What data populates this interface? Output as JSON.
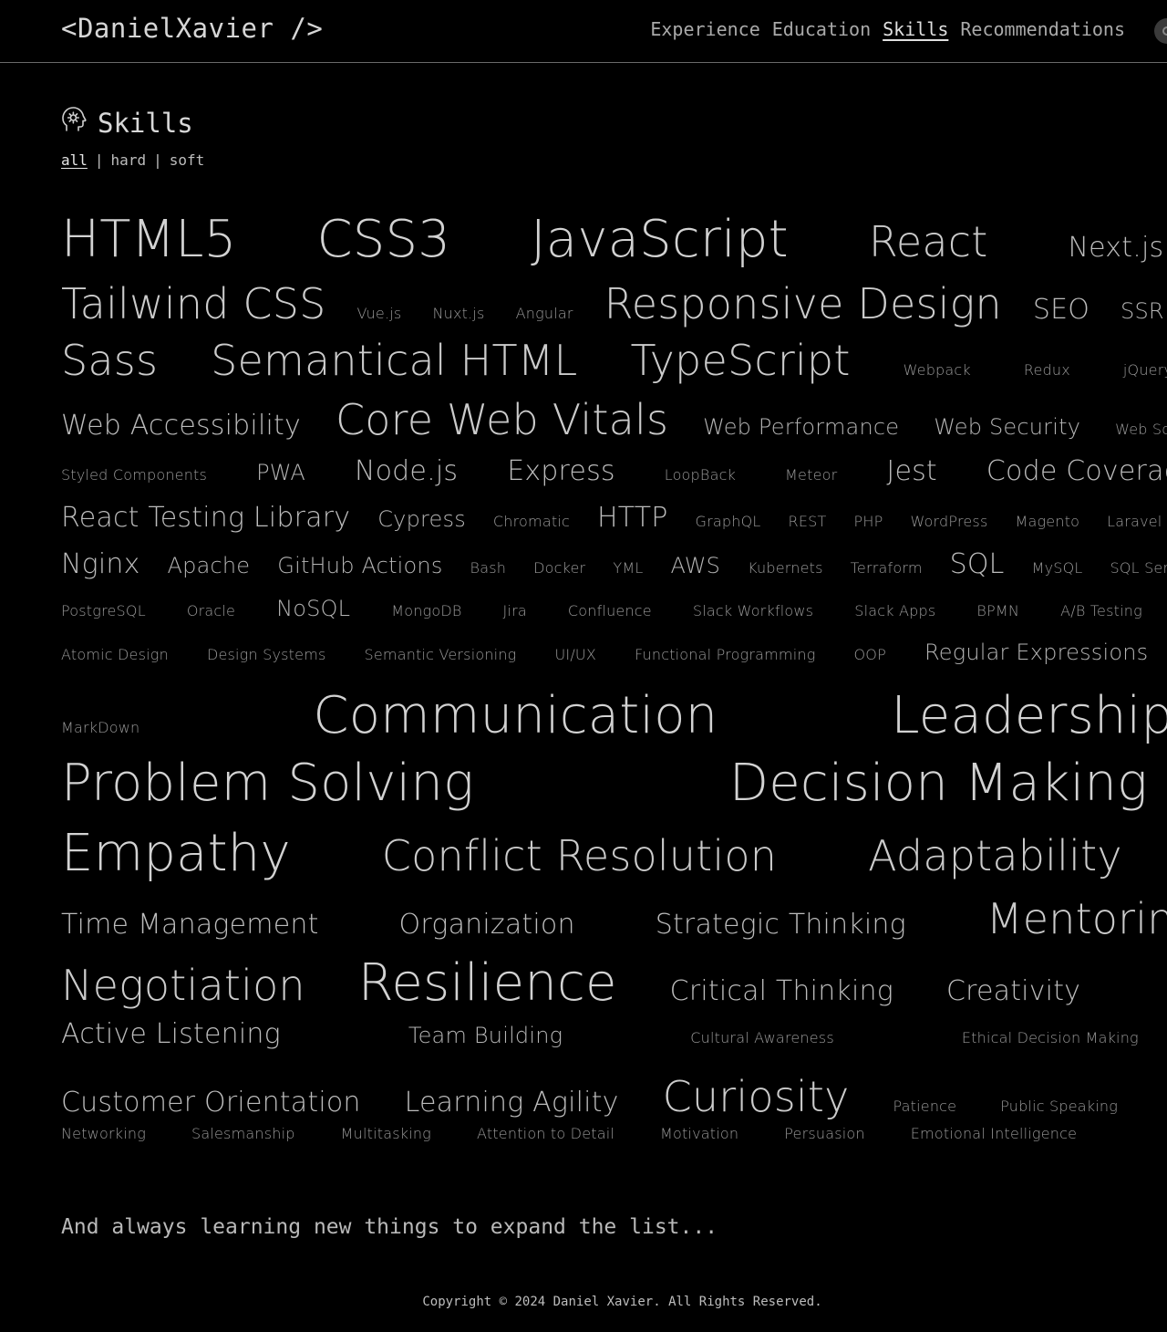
{
  "header": {
    "logo": "<DanielXavier />",
    "nav": [
      {
        "label": "Experience",
        "active": false
      },
      {
        "label": "Education",
        "active": false
      },
      {
        "label": "Skills",
        "active": true
      },
      {
        "label": "Recommendations",
        "active": false
      }
    ]
  },
  "section": {
    "title": "Skills",
    "icon": "head-gear-icon",
    "filters": [
      {
        "label": "all",
        "active": true
      },
      {
        "label": "hard",
        "active": false
      },
      {
        "label": "soft",
        "active": false
      }
    ],
    "separator": "|"
  },
  "skill_rows": [
    {
      "skills": [
        {
          "name": "HTML5",
          "size": 7
        },
        {
          "name": "CSS3",
          "size": 7
        },
        {
          "name": "JavaScript",
          "size": 7
        },
        {
          "name": "React",
          "size": 6
        },
        {
          "name": "Next.js",
          "size": 4
        }
      ]
    },
    {
      "skills": [
        {
          "name": "Tailwind CSS",
          "size": 6
        },
        {
          "name": "Vue.js",
          "size": 1
        },
        {
          "name": "Nuxt.js",
          "size": 1
        },
        {
          "name": "Angular",
          "size": 1
        },
        {
          "name": "Responsive Design",
          "size": 6
        },
        {
          "name": "SEO",
          "size": 4
        },
        {
          "name": "SSR",
          "size": 3
        }
      ]
    },
    {
      "skills": [
        {
          "name": "Sass",
          "size": 6
        },
        {
          "name": "Semantical HTML",
          "size": 6
        },
        {
          "name": "TypeScript",
          "size": 6
        },
        {
          "name": "Webpack",
          "size": 1
        },
        {
          "name": "Redux",
          "size": 1
        },
        {
          "name": "jQuery",
          "size": 1
        }
      ]
    },
    {
      "skills": [
        {
          "name": "Web Accessibility",
          "size": 4
        },
        {
          "name": "Core Web Vitals",
          "size": 6
        },
        {
          "name": "Web Performance",
          "size": 3
        },
        {
          "name": "Web Security",
          "size": 3
        },
        {
          "name": "Web Sockets",
          "size": 1
        }
      ]
    },
    {
      "skills": [
        {
          "name": "Styled Components",
          "size": 1
        },
        {
          "name": "PWA",
          "size": 3
        },
        {
          "name": "Node.js",
          "size": 4
        },
        {
          "name": "Express",
          "size": 4
        },
        {
          "name": "LoopBack",
          "size": 1
        },
        {
          "name": "Meteor",
          "size": 1
        },
        {
          "name": "Jest",
          "size": 4
        },
        {
          "name": "Code Coverage",
          "size": 4
        }
      ]
    },
    {
      "skills": [
        {
          "name": "React Testing Library",
          "size": 4
        },
        {
          "name": "Cypress",
          "size": 3
        },
        {
          "name": "Chromatic",
          "size": 1
        },
        {
          "name": "HTTP",
          "size": 4
        },
        {
          "name": "GraphQL",
          "size": 1
        },
        {
          "name": "REST",
          "size": 1
        },
        {
          "name": "PHP",
          "size": 1
        },
        {
          "name": "WordPress",
          "size": 1
        },
        {
          "name": "Magento",
          "size": 1
        },
        {
          "name": "Laravel",
          "size": 1
        }
      ]
    },
    {
      "skills": [
        {
          "name": "Nginx",
          "size": 4
        },
        {
          "name": "Apache",
          "size": 3
        },
        {
          "name": "GitHub Actions",
          "size": 3
        },
        {
          "name": "Bash",
          "size": 1
        },
        {
          "name": "Docker",
          "size": 1
        },
        {
          "name": "YML",
          "size": 1
        },
        {
          "name": "AWS",
          "size": 3
        },
        {
          "name": "Kubernets",
          "size": 1
        },
        {
          "name": "Terraform",
          "size": 1
        },
        {
          "name": "SQL",
          "size": 4
        },
        {
          "name": "MySQL",
          "size": 1
        },
        {
          "name": "SQL Server",
          "size": 1
        }
      ]
    },
    {
      "skills": [
        {
          "name": "PostgreSQL",
          "size": 1
        },
        {
          "name": "Oracle",
          "size": 1
        },
        {
          "name": "NoSQL",
          "size": 3
        },
        {
          "name": "MongoDB",
          "size": 1
        },
        {
          "name": "Jira",
          "size": 1
        },
        {
          "name": "Confluence",
          "size": 1
        },
        {
          "name": "Slack Workflows",
          "size": 1
        },
        {
          "name": "Slack Apps",
          "size": 1
        },
        {
          "name": "BPMN",
          "size": 1
        },
        {
          "name": "A/B Testing",
          "size": 1
        }
      ]
    },
    {
      "skills": [
        {
          "name": "Atomic Design",
          "size": 1
        },
        {
          "name": "Design Systems",
          "size": 1
        },
        {
          "name": "Semantic Versioning",
          "size": 1
        },
        {
          "name": "UI/UX",
          "size": 1
        },
        {
          "name": "Functional Programming",
          "size": 1
        },
        {
          "name": "OOP",
          "size": 1
        },
        {
          "name": "Regular Expressions",
          "size": 3
        }
      ]
    },
    {
      "skills": [
        {
          "name": "MarkDown",
          "size": 1
        },
        {
          "name": "Communication",
          "size": 7
        },
        {
          "name": "Leadership",
          "size": 7
        }
      ]
    },
    {
      "skills": [
        {
          "name": "Problem Solving",
          "size": 7
        },
        {
          "name": "Decision Making",
          "size": 7
        }
      ]
    },
    {
      "skills": [
        {
          "name": "Empathy",
          "size": 7
        },
        {
          "name": "Conflict Resolution",
          "size": 6
        },
        {
          "name": "Adaptability",
          "size": 6
        }
      ]
    },
    {
      "skills": [
        {
          "name": "Time Management",
          "size": 4
        },
        {
          "name": "Organization",
          "size": 4
        },
        {
          "name": "Strategic Thinking",
          "size": 4
        },
        {
          "name": "Mentoring",
          "size": 6
        }
      ]
    },
    {
      "skills": [
        {
          "name": "Negotiation",
          "size": 6
        },
        {
          "name": "Resilience",
          "size": 7
        },
        {
          "name": "Critical Thinking",
          "size": 4
        },
        {
          "name": "Creativity",
          "size": 4
        }
      ]
    },
    {
      "skills": [
        {
          "name": "Active Listening",
          "size": 4
        },
        {
          "name": "Team Building",
          "size": 3
        },
        {
          "name": "Cultural Awareness",
          "size": 1
        },
        {
          "name": "Ethical Decision Making",
          "size": 1
        }
      ]
    },
    {
      "skills": [
        {
          "name": "Customer Orientation",
          "size": 4
        },
        {
          "name": "Learning Agility",
          "size": 4
        },
        {
          "name": "Curiosity",
          "size": 6
        },
        {
          "name": "Patience",
          "size": 1
        },
        {
          "name": "Public Speaking",
          "size": 1
        }
      ]
    },
    {
      "skills": [
        {
          "name": "Networking",
          "size": 1
        },
        {
          "name": "Salesmanship",
          "size": 1
        },
        {
          "name": "Multitasking",
          "size": 1
        },
        {
          "name": "Attention to Detail",
          "size": 1
        },
        {
          "name": "Motivation",
          "size": 1
        },
        {
          "name": "Persuasion",
          "size": 1
        },
        {
          "name": "Emotional Intelligence",
          "size": 1
        }
      ]
    }
  ],
  "footnote": "And always learning new things to expand the list...",
  "footer": {
    "copyright": "Copyright © 2024 Daniel Xavier. All Rights Reserved."
  }
}
